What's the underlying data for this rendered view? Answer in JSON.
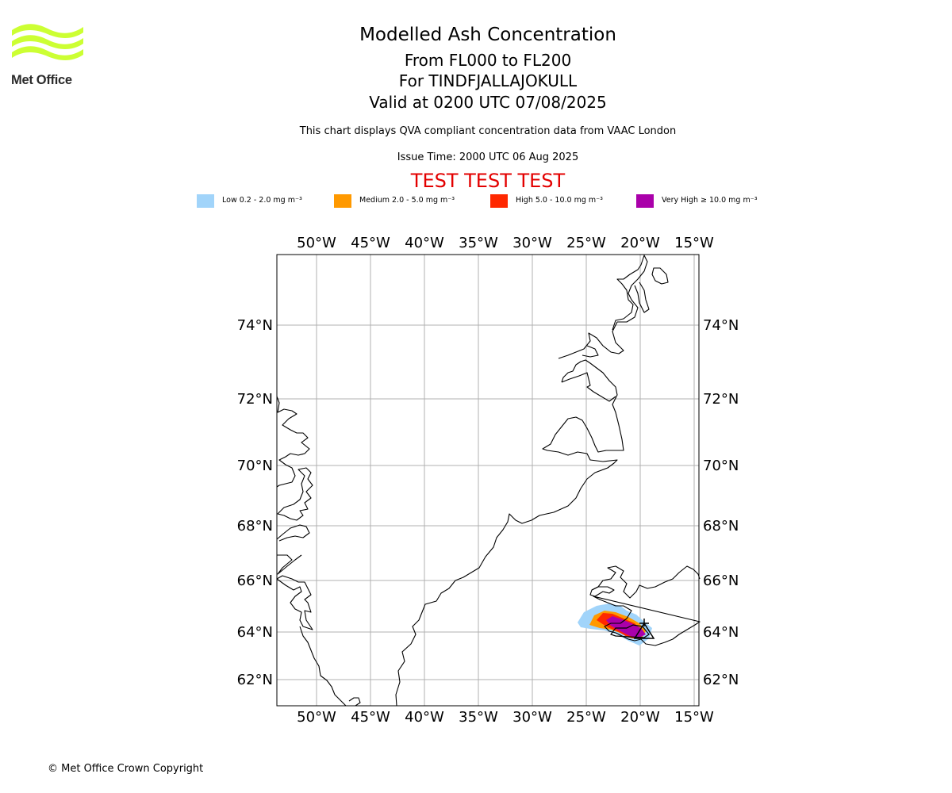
{
  "logo": {
    "text": "Met Office",
    "color": "#ccff33"
  },
  "header": {
    "title": "Modelled Ash Concentration",
    "subtitle_levels": "From FL000 to FL200",
    "subtitle_volcano": "For TINDFJALLAJOKULL",
    "subtitle_valid": "Valid at 0200 UTC 07/08/2025",
    "description": "This chart displays QVA compliant concentration data from VAAC London",
    "issue_time": "Issue Time: 2000 UTC 06 Aug 2025",
    "test_banner": "TEST TEST TEST"
  },
  "legend": [
    {
      "label": "Low 0.2 - 2.0 mg m⁻³",
      "color": "#a1d4fa"
    },
    {
      "label": "Medium 2.0 - 5.0 mg m⁻³",
      "color": "#ff9900"
    },
    {
      "label": "High 5.0 - 10.0 mg m⁻³",
      "color": "#ff2800"
    },
    {
      "label": "Very High  ≥  10.0 mg m⁻³",
      "color": "#aa00aa"
    }
  ],
  "map": {
    "projection": "Mercator",
    "lon_range": [
      -53.7,
      -14.7
    ],
    "lat_range": [
      61.1,
      76.0
    ],
    "gridlines": true,
    "gridline_color": "#b0b0b0",
    "lon_ticks": [
      "50°W",
      "45°W",
      "40°W",
      "35°W",
      "30°W",
      "25°W",
      "20°W",
      "15°W"
    ],
    "lat_ticks": [
      "74°N",
      "72°N",
      "70°N",
      "68°N",
      "66°N",
      "64°N",
      "62°N"
    ],
    "volcano_marker": "triangle"
  },
  "footer": {
    "copyright": "© Met Office Crown Copyright"
  }
}
